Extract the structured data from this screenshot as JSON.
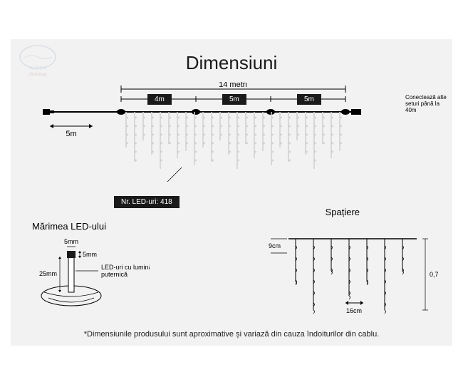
{
  "title": "Dimensiuni",
  "logo": {
    "line1": "FLIPPY",
    "line2": "christmas"
  },
  "main": {
    "total_width": "14 metri",
    "sections": [
      "4m",
      "5m",
      "5m"
    ],
    "lead_cable": "5m",
    "connect_note": "Conectează alte seturi până la 40m",
    "nr_leds_label": "Nr. LED-uri: 418",
    "colors": {
      "cable": "#000000",
      "drops": "#d0d0d0",
      "bg": "#f2f2f2",
      "label_bg": "#1a1a1a"
    }
  },
  "led_size": {
    "title": "Mărimea LED-ului",
    "width": "5mm",
    "cap": "5mm",
    "height": "25mm",
    "note": "LED-uri cu lumină puternică"
  },
  "spacing": {
    "title": "Spațiere",
    "horizontal": "9cm",
    "between": "16cm",
    "drop": "0,7m"
  },
  "footnote": "*Dimensiunile produsului sunt aproximative și variază din cauza îndoiturilor din cablu."
}
